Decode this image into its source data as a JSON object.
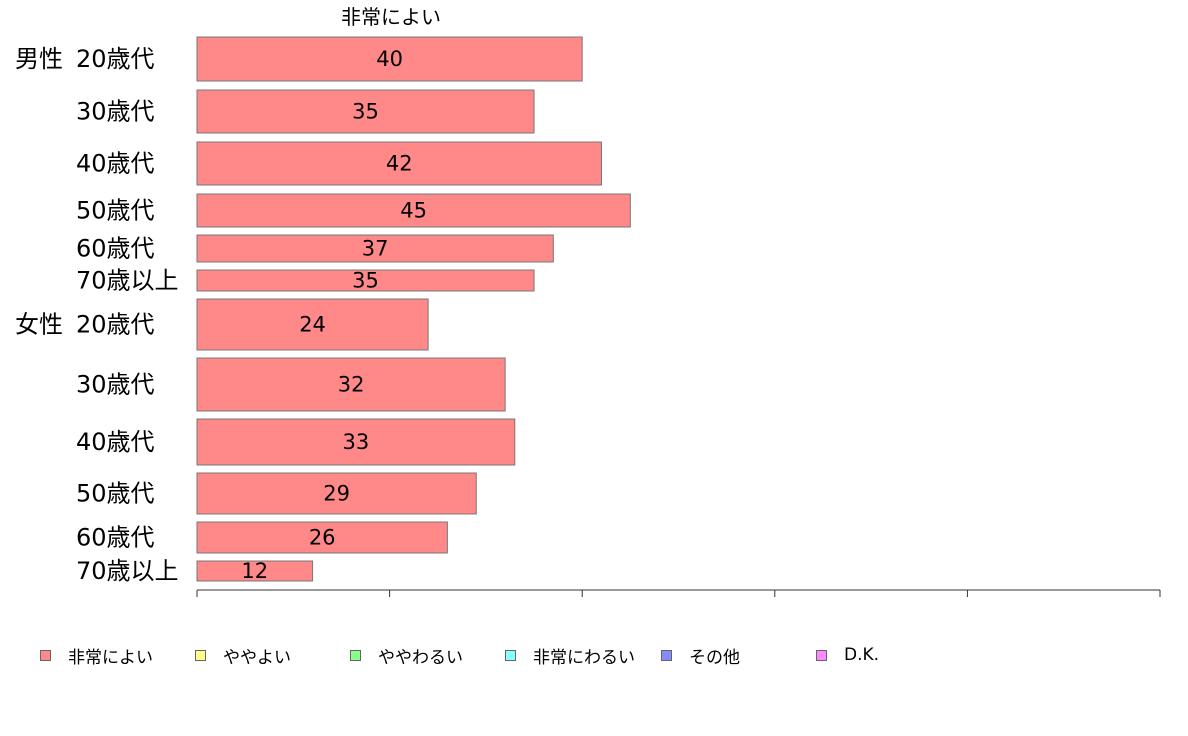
{
  "chart_data": {
    "type": "bar",
    "orientation": "horizontal",
    "title": "非常によい",
    "groups": [
      {
        "label": "男性",
        "categories": [
          "20歳代",
          "30歳代",
          "40歳代",
          "50歳代",
          "60歳代",
          "70歳以上"
        ],
        "values": [
          40,
          35,
          42,
          45,
          37,
          35
        ]
      },
      {
        "label": "女性",
        "categories": [
          "20歳代",
          "30歳代",
          "40歳代",
          "50歳代",
          "60歳代",
          "70歳以上"
        ],
        "values": [
          24,
          32,
          33,
          29,
          26,
          12
        ]
      }
    ],
    "xlim": [
      0,
      100
    ],
    "xticks": [
      0,
      20,
      40,
      60,
      80,
      100
    ],
    "legend": [
      {
        "name": "非常によい",
        "color": "#ff8888"
      },
      {
        "name": "ややよい",
        "color": "#ffff88"
      },
      {
        "name": "ややわるい",
        "color": "#88ff88"
      },
      {
        "name": "非常にわるい",
        "color": "#88ffff"
      },
      {
        "name": "その他",
        "color": "#8888ff"
      },
      {
        "name": "D.K.",
        "color": "#ff88ff"
      }
    ],
    "legend_position": "bottom",
    "grid": false
  }
}
